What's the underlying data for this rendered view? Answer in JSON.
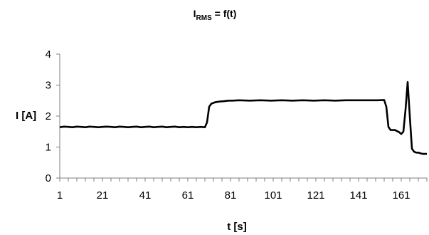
{
  "chart_data": {
    "type": "line",
    "title_main": "I",
    "title_sub": "RMS",
    "title_rest": " = f(t)",
    "xlabel": "t [s]",
    "ylabel": "I [A]",
    "xlim": [
      1,
      173
    ],
    "ylim": [
      0,
      4
    ],
    "yticks": [
      "0",
      "1",
      "2",
      "3",
      "4"
    ],
    "xticks": [
      "1",
      "21",
      "41",
      "61",
      "81",
      "101",
      "121",
      "141",
      "161"
    ],
    "xtick_values": [
      1,
      21,
      41,
      61,
      81,
      101,
      121,
      141,
      161
    ],
    "grid": false,
    "legend": "none",
    "line_color": "#000000",
    "series": [
      {
        "x": [
          1,
          3,
          5,
          7,
          9,
          11,
          13,
          15,
          17,
          19,
          21,
          23,
          25,
          27,
          29,
          31,
          33,
          35,
          37,
          39,
          41,
          43,
          45,
          47,
          49,
          51,
          53,
          55,
          57,
          59,
          61,
          63,
          65,
          67,
          69,
          70,
          71,
          72,
          74,
          76,
          78,
          80,
          82,
          85,
          90,
          95,
          100,
          105,
          110,
          115,
          120,
          125,
          130,
          135,
          140,
          145,
          150,
          153,
          154,
          155,
          156,
          158,
          160,
          161,
          162,
          163,
          164,
          165,
          166,
          167,
          168,
          169,
          170,
          171,
          172,
          173
        ],
        "y": [
          1.64,
          1.66,
          1.65,
          1.64,
          1.66,
          1.65,
          1.64,
          1.66,
          1.65,
          1.64,
          1.65,
          1.66,
          1.65,
          1.64,
          1.66,
          1.65,
          1.64,
          1.65,
          1.66,
          1.64,
          1.65,
          1.66,
          1.64,
          1.65,
          1.66,
          1.64,
          1.65,
          1.66,
          1.64,
          1.65,
          1.64,
          1.65,
          1.64,
          1.65,
          1.64,
          1.8,
          2.3,
          2.4,
          2.45,
          2.47,
          2.48,
          2.5,
          2.5,
          2.51,
          2.5,
          2.51,
          2.5,
          2.51,
          2.5,
          2.51,
          2.5,
          2.51,
          2.5,
          2.51,
          2.51,
          2.51,
          2.51,
          2.52,
          2.3,
          1.65,
          1.55,
          1.55,
          1.48,
          1.42,
          1.5,
          2.2,
          3.1,
          2.0,
          0.95,
          0.85,
          0.82,
          0.82,
          0.8,
          0.78,
          0.78,
          0.78
        ]
      }
    ]
  }
}
